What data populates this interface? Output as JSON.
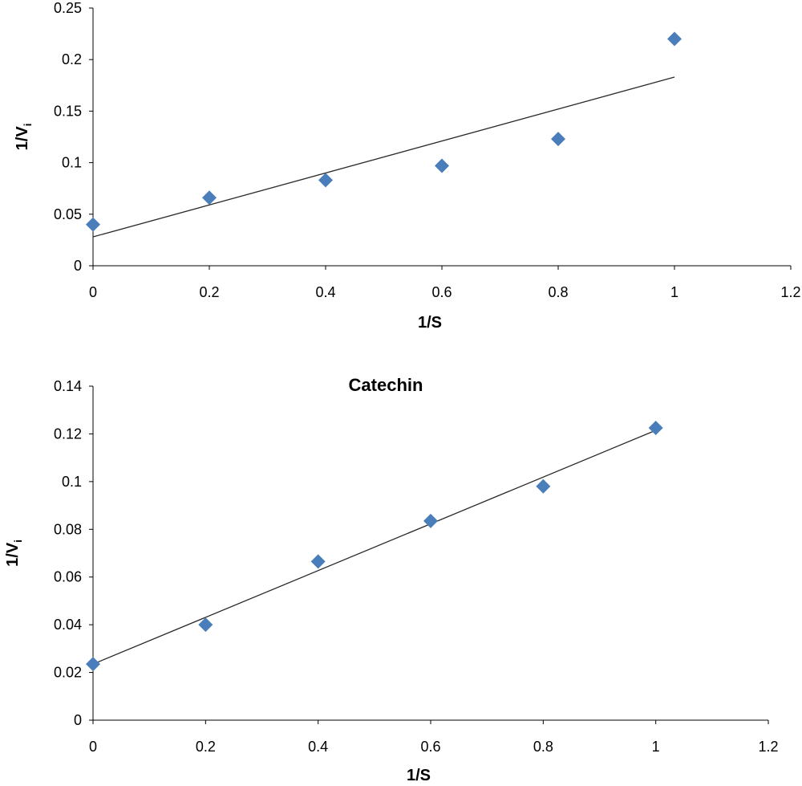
{
  "chart_data": [
    {
      "type": "scatter",
      "title": "",
      "xlabel": "1/S",
      "ylabel": {
        "main": "1/V",
        "sub": "i"
      },
      "xlim": [
        0,
        1.2
      ],
      "ylim": [
        0,
        0.25
      ],
      "xticks": [
        "0",
        "0.2",
        "0.4",
        "0.6",
        "0.8",
        "1",
        "1.2"
      ],
      "yticks": [
        "0",
        "0.05",
        "0.1",
        "0.15",
        "0.2",
        "0.25"
      ],
      "series": [
        {
          "x": [
            0,
            0.2,
            0.4,
            0.6,
            0.8,
            1.0
          ],
          "y": [
            0.04,
            0.066,
            0.083,
            0.097,
            0.123,
            0.22
          ],
          "color": "#4a7ebb",
          "marker": "diamond"
        }
      ],
      "trendline": {
        "x": [
          0,
          1.0
        ],
        "y": [
          0.028,
          0.183
        ]
      },
      "grid": false,
      "legend": "none"
    },
    {
      "type": "scatter",
      "title": "Catechin",
      "xlabel": "1/S",
      "ylabel": {
        "main": "1/V",
        "sub": "i"
      },
      "xlim": [
        0,
        1.2
      ],
      "ylim": [
        0,
        0.14
      ],
      "xticks": [
        "0",
        "0.2",
        "0.4",
        "0.6",
        "0.8",
        "1",
        "1.2"
      ],
      "yticks": [
        "0",
        "0.02",
        "0.04",
        "0.06",
        "0.08",
        "0.1",
        "0.12",
        "0.14"
      ],
      "series": [
        {
          "x": [
            0,
            0.2,
            0.4,
            0.6,
            0.8,
            1.0
          ],
          "y": [
            0.0235,
            0.04,
            0.0665,
            0.0835,
            0.098,
            0.1225
          ],
          "color": "#4a7ebb",
          "marker": "diamond"
        }
      ],
      "trendline": {
        "x": [
          0,
          1.0
        ],
        "y": [
          0.0235,
          0.1215
        ]
      },
      "grid": false,
      "legend": "none"
    }
  ]
}
